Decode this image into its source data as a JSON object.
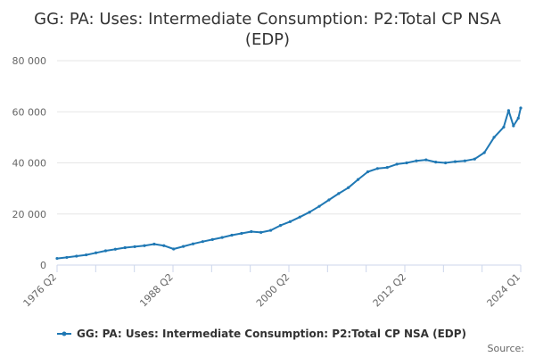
{
  "colors": {
    "series": "#1f78b4",
    "grid": "#e6e6e6",
    "axis": "#ccd6eb",
    "text": "#333333",
    "tick_text": "#666666"
  },
  "source_label": "Source:",
  "chart_data": {
    "type": "line",
    "title": "GG: PA: Uses: Intermediate Consumption: P2:Total CP NSA (EDP)",
    "title_lines": [
      "GG: PA: Uses: Intermediate Consumption: P2:Total CP NSA",
      "(EDP)"
    ],
    "xlabel": "",
    "ylabel": "",
    "ylim": [
      0,
      80000
    ],
    "y_ticks": [
      0,
      20000,
      40000,
      60000,
      80000
    ],
    "y_tick_labels": [
      "0",
      "20 000",
      "40 000",
      "60 000",
      "80 000"
    ],
    "x_tick_labels": [
      "1976 Q2",
      "1988 Q2",
      "2000 Q2",
      "2012 Q2",
      "2024 Q1"
    ],
    "grid": true,
    "legend": "bottom",
    "series": [
      {
        "name": "GG: PA: Uses: Intermediate Consumption: P2:Total CP NSA (EDP)",
        "x": [
          "1976 Q2",
          "1977 Q2",
          "1978 Q2",
          "1979 Q2",
          "1980 Q2",
          "1981 Q2",
          "1982 Q2",
          "1983 Q2",
          "1984 Q2",
          "1985 Q2",
          "1986 Q2",
          "1987 Q2",
          "1988 Q2",
          "1989 Q2",
          "1990 Q2",
          "1991 Q2",
          "1992 Q2",
          "1993 Q2",
          "1994 Q2",
          "1995 Q2",
          "1996 Q2",
          "1997 Q2",
          "1998 Q2",
          "1999 Q2",
          "2000 Q2",
          "2001 Q2",
          "2002 Q2",
          "2003 Q2",
          "2004 Q2",
          "2005 Q2",
          "2006 Q2",
          "2007 Q2",
          "2008 Q2",
          "2009 Q2",
          "2010 Q2",
          "2011 Q2",
          "2012 Q2",
          "2013 Q2",
          "2014 Q2",
          "2015 Q2",
          "2016 Q2",
          "2017 Q2",
          "2018 Q2",
          "2019 Q2",
          "2020 Q2",
          "2021 Q2",
          "2022 Q2",
          "2022 Q4",
          "2023 Q2",
          "2023 Q4",
          "2024 Q1"
        ],
        "values": [
          2600,
          3000,
          3500,
          4000,
          4800,
          5600,
          6200,
          6800,
          7200,
          7600,
          8200,
          7600,
          6300,
          7300,
          8300,
          9200,
          10000,
          10800,
          11700,
          12400,
          13100,
          12800,
          13600,
          15500,
          17000,
          18800,
          20700,
          23000,
          25500,
          28000,
          30300,
          33500,
          36500,
          37800,
          38200,
          39500,
          40000,
          40800,
          41200,
          40300,
          40000,
          40500,
          40800,
          41500,
          44000,
          50000,
          54000,
          60500,
          54500,
          57500,
          61500
        ]
      }
    ]
  }
}
